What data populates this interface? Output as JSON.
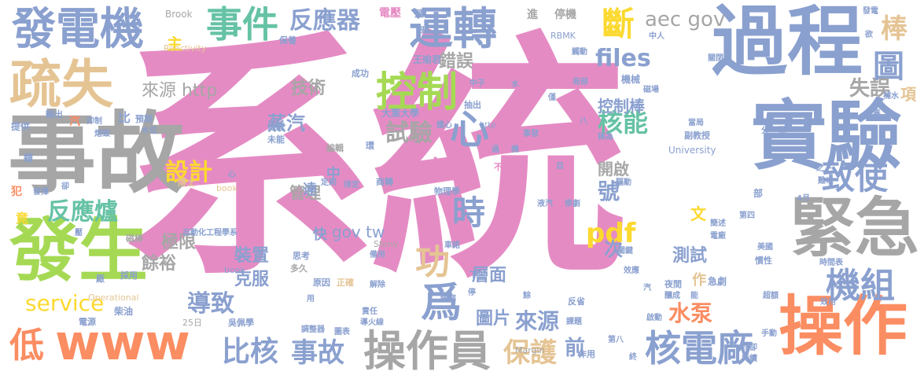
{
  "colors": {
    "pink": "#e58bc4",
    "gray": "#a6a6a6",
    "blue": "#8aa0cf",
    "orange": "#fb8d62",
    "green": "#a5d954",
    "tan": "#e5c494",
    "yellow": "#fcd92f",
    "teal": "#66c2a5",
    "background": "#ffffff"
  },
  "words": [
    {
      "text": "系統",
      "color": "pink"
    },
    {
      "text": "過程",
      "color": "blue"
    },
    {
      "text": "事故",
      "color": "gray"
    },
    {
      "text": "實驗",
      "color": "blue"
    },
    {
      "text": "緊急",
      "color": "gray"
    },
    {
      "text": "操作",
      "color": "orange"
    },
    {
      "text": "發生",
      "color": "green"
    },
    {
      "text": "疏失",
      "color": "tan"
    },
    {
      "text": "www",
      "color": "orange"
    },
    {
      "text": "發電機",
      "color": "blue"
    },
    {
      "text": "運轉",
      "color": "blue"
    },
    {
      "text": "事件",
      "color": "teal"
    },
    {
      "text": "反應器",
      "color": "blue"
    },
    {
      "text": "操作員",
      "color": "gray"
    },
    {
      "text": "核電廠",
      "color": "blue"
    },
    {
      "text": "控制",
      "color": "green"
    },
    {
      "text": "機組",
      "color": "blue"
    },
    {
      "text": "致使",
      "color": "blue"
    },
    {
      "text": "反應爐",
      "color": "teal"
    },
    {
      "text": "斷",
      "color": "yellow"
    },
    {
      "text": "圖",
      "color": "blue"
    },
    {
      "text": "心",
      "color": "blue"
    },
    {
      "text": "時",
      "color": "blue"
    },
    {
      "text": "自動",
      "color": "pink"
    },
    {
      "text": "核能",
      "color": "teal"
    },
    {
      "text": "pdf",
      "color": "yellow"
    },
    {
      "text": "files",
      "color": "blue"
    },
    {
      "text": "aec gov",
      "color": "gray"
    },
    {
      "text": "比核",
      "color": "blue"
    },
    {
      "text": "事故",
      "color": "blue"
    },
    {
      "text": "保護",
      "color": "tan"
    },
    {
      "text": "設計",
      "color": "yellow"
    },
    {
      "text": "service",
      "color": "yellow"
    },
    {
      "text": "爲",
      "color": "blue"
    },
    {
      "text": "功",
      "color": "tan"
    },
    {
      "text": "低",
      "color": "orange"
    },
    {
      "text": "水泵",
      "color": "orange"
    },
    {
      "text": "導致",
      "color": "blue"
    },
    {
      "text": "來源",
      "color": "blue"
    },
    {
      "text": "棒",
      "color": "tan"
    },
    {
      "text": "失誤",
      "color": "gray"
    },
    {
      "text": "試驗",
      "color": "gray"
    },
    {
      "text": "錯誤",
      "color": "gray"
    },
    {
      "text": "技術",
      "color": "gray"
    },
    {
      "text": "來源 http",
      "color": "gray"
    },
    {
      "text": "蒸汽",
      "color": "blue"
    },
    {
      "text": "控制棒",
      "color": "blue"
    },
    {
      "text": "開啟",
      "color": "gray"
    },
    {
      "text": "號",
      "color": "blue"
    },
    {
      "text": "次",
      "color": "blue"
    },
    {
      "text": "測試",
      "color": "blue"
    },
    {
      "text": "層面",
      "color": "blue"
    },
    {
      "text": "圖片",
      "color": "blue"
    },
    {
      "text": "前",
      "color": "blue"
    },
    {
      "text": "管理",
      "color": "gray"
    },
    {
      "text": "極限",
      "color": "gray"
    },
    {
      "text": "餘裕",
      "color": "gray"
    },
    {
      "text": "裝置",
      "color": "blue"
    },
    {
      "text": "克服",
      "color": "blue"
    },
    {
      "text": "gov tw",
      "color": "blue"
    },
    {
      "text": "快",
      "color": "blue"
    },
    {
      "text": "達",
      "color": "blue"
    },
    {
      "text": "中",
      "color": "blue"
    },
    {
      "text": "文",
      "color": "yellow"
    },
    {
      "text": "項",
      "color": "tan"
    },
    {
      "text": "作",
      "color": "tan"
    },
    {
      "text": "主",
      "color": "yellow"
    },
    {
      "text": "Brook",
      "color": "gray"
    },
    {
      "text": "Reactivity",
      "color": "tan"
    },
    {
      "text": "電壓",
      "color": "pink"
    },
    {
      "text": "進",
      "color": "gray"
    },
    {
      "text": "停機",
      "color": "gray"
    },
    {
      "text": "RBMK",
      "color": "blue"
    },
    {
      "text": "王瑜君",
      "color": "blue"
    },
    {
      "text": "機械",
      "color": "blue"
    },
    {
      "text": "University",
      "color": "blue"
    },
    {
      "text": "大葉大學",
      "color": "blue"
    },
    {
      "text": "自動化工程學系",
      "color": "blue"
    },
    {
      "text": "商轉",
      "color": "blue"
    },
    {
      "text": "物理學",
      "color": "blue"
    },
    {
      "text": "Stony",
      "color": "gray"
    },
    {
      "text": "Margin",
      "color": "gray"
    },
    {
      "text": "Operational",
      "color": "tan"
    },
    {
      "text": "book_",
      "color": "blue"
    },
    {
      "text": "book",
      "color": "tan"
    },
    {
      "text": "25日",
      "color": "gray"
    },
    {
      "text": "博士",
      "color": "tan"
    },
    {
      "text": "預期",
      "color": "blue"
    },
    {
      "text": "柴油",
      "color": "blue"
    },
    {
      "text": "電源",
      "color": "blue"
    },
    {
      "text": "提供",
      "color": "blue"
    },
    {
      "text": "輸出",
      "color": "blue"
    },
    {
      "text": "汽",
      "color": "orange"
    },
    {
      "text": "比",
      "color": "blue"
    },
    {
      "text": "抑制",
      "color": "blue"
    },
    {
      "text": "熔毀",
      "color": "blue"
    },
    {
      "text": "水位",
      "color": "blue"
    },
    {
      "text": "竟",
      "color": "yellow"
    },
    {
      "text": "犯",
      "color": "orange"
    },
    {
      "text": "採用",
      "color": "blue"
    },
    {
      "text": "磁棒",
      "color": "gray"
    },
    {
      "text": "厰",
      "color": "blue"
    },
    {
      "text": "成功",
      "color": "blue"
    },
    {
      "text": "抽出",
      "color": "blue"
    },
    {
      "text": "事發",
      "color": "blue"
    },
    {
      "text": "未能",
      "color": "blue"
    },
    {
      "text": "提醒",
      "color": "blue"
    },
    {
      "text": "編輯",
      "color": "gray"
    },
    {
      "text": "定期",
      "color": "blue"
    },
    {
      "text": "排定",
      "color": "blue"
    },
    {
      "text": "思考",
      "color": "blue"
    },
    {
      "text": "多久",
      "color": "gray"
    },
    {
      "text": "原因",
      "color": "blue"
    },
    {
      "text": "正確",
      "color": "tan"
    },
    {
      "text": "解除",
      "color": "blue"
    },
    {
      "text": "繞密",
      "color": "blue"
    },
    {
      "text": "責任",
      "color": "blue"
    },
    {
      "text": "導火線",
      "color": "blue"
    },
    {
      "text": "調整器",
      "color": "blue"
    },
    {
      "text": "圖表",
      "color": "blue"
    },
    {
      "text": "吳佩學",
      "color": "blue"
    },
    {
      "text": "課題",
      "color": "blue"
    },
    {
      "text": "反省",
      "color": "blue"
    },
    {
      "text": "作用",
      "color": "blue"
    },
    {
      "text": "啟動",
      "color": "blue"
    },
    {
      "text": "夜間",
      "color": "blue"
    },
    {
      "text": "釀成",
      "color": "blue"
    },
    {
      "text": "急劇",
      "color": "blue"
    },
    {
      "text": "效用",
      "color": "blue"
    },
    {
      "text": "時間表",
      "color": "blue"
    },
    {
      "text": "超額",
      "color": "blue"
    },
    {
      "text": "手動",
      "color": "blue"
    },
    {
      "text": "冷卻",
      "color": "blue"
    },
    {
      "text": "持續",
      "color": "blue"
    },
    {
      "text": "慣性",
      "color": "blue"
    },
    {
      "text": "美國",
      "color": "blue"
    },
    {
      "text": "電廠",
      "color": "blue"
    },
    {
      "text": "簡述",
      "color": "blue"
    },
    {
      "text": "關鍵",
      "color": "blue"
    },
    {
      "text": "效應",
      "color": "blue"
    },
    {
      "text": "第四",
      "color": "blue"
    },
    {
      "text": "慘劇",
      "color": "blue"
    },
    {
      "text": "4月",
      "color": "blue"
    },
    {
      "text": "難以",
      "color": "blue"
    },
    {
      "text": "之下",
      "color": "blue"
    },
    {
      "text": "副教授",
      "color": "blue"
    },
    {
      "text": "當局",
      "color": "blue"
    },
    {
      "text": "稱為",
      "color": "blue"
    },
    {
      "text": "驅動",
      "color": "blue"
    },
    {
      "text": "不當",
      "color": "pink"
    },
    {
      "text": "燼心",
      "color": "blue"
    },
    {
      "text": "磁場",
      "color": "blue"
    },
    {
      "text": "關閉",
      "color": "blue"
    },
    {
      "text": "中子",
      "color": "blue"
    },
    {
      "text": "局部",
      "color": "blue"
    },
    {
      "text": "中人",
      "color": "blue"
    },
    {
      "text": "觸動",
      "color": "blue"
    },
    {
      "text": "保養",
      "color": "blue"
    },
    {
      "text": "補水",
      "color": "blue"
    },
    {
      "text": "氙毒",
      "color": "blue"
    },
    {
      "text": "發電",
      "color": "blue"
    },
    {
      "text": "欲",
      "color": "blue"
    },
    {
      "text": "分",
      "color": "blue"
    },
    {
      "text": "器",
      "color": "blue"
    },
    {
      "text": "http",
      "color": "blue"
    },
    {
      "text": "水",
      "color": "blue"
    },
    {
      "text": "僅",
      "color": "blue"
    },
    {
      "text": "八",
      "color": "blue"
    },
    {
      "text": "環",
      "color": "blue"
    },
    {
      "text": "根",
      "color": "blue"
    },
    {
      "text": "擬",
      "color": "blue"
    },
    {
      "text": "部",
      "color": "blue"
    },
    {
      "text": "第八",
      "color": "blue"
    },
    {
      "text": "餘",
      "color": "blue"
    },
    {
      "text": "能",
      "color": "blue"
    },
    {
      "text": "停",
      "color": "blue"
    },
    {
      "text": "用",
      "color": "blue"
    },
    {
      "text": "下",
      "color": "blue"
    },
    {
      "text": "心",
      "color": "blue"
    },
    {
      "text": "機",
      "color": "blue"
    },
    {
      "text": "過",
      "color": "blue"
    },
    {
      "text": "終",
      "color": "blue"
    },
    {
      "text": "卻",
      "color": "blue"
    },
    {
      "text": "藉",
      "color": "blue"
    },
    {
      "text": "發揮",
      "color": "blue"
    },
    {
      "text": "壓",
      "color": "blue"
    },
    {
      "text": "液汽",
      "color": "blue"
    },
    {
      "text": "汽",
      "color": "blue"
    },
    {
      "text": "自",
      "color": "blue"
    },
    {
      "text": "車諾",
      "color": "blue"
    },
    {
      "text": "備用",
      "color": "blue"
    }
  ]
}
